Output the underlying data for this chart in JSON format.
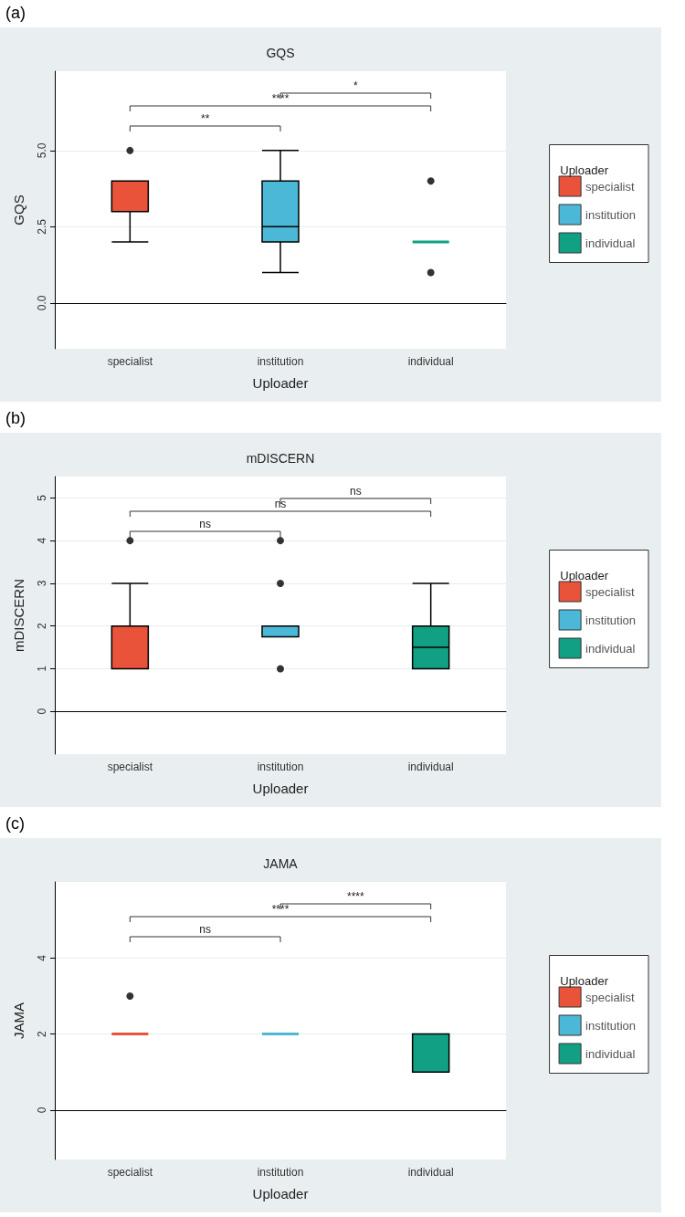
{
  "chart_data": [
    {
      "type": "box",
      "title": "GQS",
      "xlabel": "Uploader",
      "ylabel": "GQS",
      "legend_title": "Uploader",
      "legend": "right",
      "grid": true,
      "categories": [
        "specialist",
        "institution",
        "individual"
      ],
      "ylim": [
        -1.5,
        7.6
      ],
      "yticks": [
        {
          "value": 0,
          "label": "0.0"
        },
        {
          "value": 2.5,
          "label": "2.5"
        },
        {
          "value": 5,
          "label": "5.0"
        }
      ],
      "annotations": [
        "(a)",
        "**",
        "****",
        "*"
      ],
      "series": [
        {
          "name": "specialist",
          "color": "#e8533a",
          "boxes": [
            {
              "low": 2,
              "q1": 3,
              "median": 3,
              "q3": 4,
              "high": 4,
              "outliers": [
                5
              ]
            },
            null,
            null
          ]
        },
        {
          "name": "institution",
          "color": "#4cb8d8",
          "boxes": [
            null,
            {
              "low": 1,
              "q1": 2,
              "median": 2.5,
              "q3": 4,
              "high": 5
            },
            null
          ]
        },
        {
          "name": "individual",
          "color": "#12a085",
          "boxes": [
            null,
            null,
            {
              "low": 2,
              "q1": 2,
              "median": 2,
              "q3": 2,
              "high": 2,
              "outliers": [
                1,
                4
              ]
            }
          ]
        }
      ]
    },
    {
      "type": "box",
      "title": "mDISCERN",
      "xlabel": "Uploader",
      "ylabel": "mDISCERN",
      "legend_title": "Uploader",
      "legend": "right",
      "grid": true,
      "categories": [
        "specialist",
        "institution",
        "individual"
      ],
      "ylim": [
        -1,
        5.5
      ],
      "yticks": [
        0,
        1,
        2,
        3,
        4,
        5
      ],
      "annotations": [
        "(b)",
        "ns",
        "ns",
        "ns"
      ],
      "series": [
        {
          "name": "specialist",
          "color": "#e8533a",
          "boxes": [
            {
              "low": 1,
              "q1": 1,
              "median": 2,
              "q3": 2,
              "high": 3,
              "outliers": [
                4
              ]
            },
            null,
            null
          ]
        },
        {
          "name": "institution",
          "color": "#4cb8d8",
          "boxes": [
            null,
            {
              "low": 1.75,
              "q1": 1.75,
              "median": 2,
              "q3": 2,
              "high": 2,
              "outliers": [
                1,
                3,
                4
              ]
            },
            null
          ]
        },
        {
          "name": "individual",
          "color": "#12a085",
          "boxes": [
            null,
            null,
            {
              "low": 1,
              "q1": 1,
              "median": 1.5,
              "q3": 2,
              "high": 3
            }
          ]
        }
      ]
    },
    {
      "type": "box",
      "title": "JAMA",
      "xlabel": "Uploader",
      "ylabel": "JAMA",
      "legend_title": "Uploader",
      "legend": "right",
      "grid": true,
      "categories": [
        "specialist",
        "institution",
        "individual"
      ],
      "ylim": [
        -1.3,
        6
      ],
      "yticks": [
        0,
        2,
        4
      ],
      "annotations": [
        "(c)",
        "ns",
        "****",
        "****"
      ],
      "series": [
        {
          "name": "specialist",
          "color": "#e8533a",
          "boxes": [
            {
              "low": 2,
              "q1": 2,
              "median": 2,
              "q3": 2,
              "high": 2,
              "outliers": [
                3
              ]
            },
            null,
            null
          ]
        },
        {
          "name": "institution",
          "color": "#4cb8d8",
          "boxes": [
            null,
            {
              "low": 2,
              "q1": 2,
              "median": 2,
              "q3": 2,
              "high": 2
            },
            null
          ]
        },
        {
          "name": "individual",
          "color": "#12a085",
          "boxes": [
            null,
            null,
            {
              "low": 1,
              "q1": 1,
              "median": 1,
              "q3": 2,
              "high": 2
            }
          ]
        }
      ]
    }
  ]
}
